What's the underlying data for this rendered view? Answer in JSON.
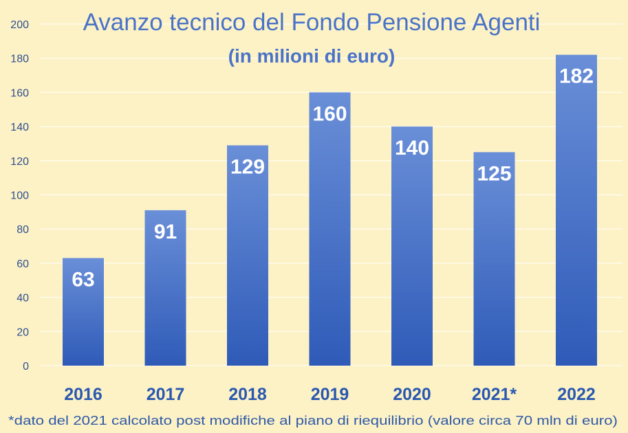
{
  "chart_data": {
    "type": "bar",
    "title": "Avanzo tecnico del Fondo Pensione Agenti",
    "subtitle": "(in milioni di euro)",
    "categories": [
      "2016",
      "2017",
      "2018",
      "2019",
      "2020",
      "2021*",
      "2022"
    ],
    "values": [
      63,
      91,
      129,
      160,
      140,
      125,
      182
    ],
    "value_labels": [
      "63",
      "91",
      "129",
      "160",
      "140",
      "125",
      "182"
    ],
    "ylim": [
      0,
      200
    ],
    "yticks": [
      0,
      20,
      40,
      60,
      80,
      100,
      120,
      140,
      160,
      180,
      200
    ],
    "ytick_labels": [
      "0",
      "20",
      "40",
      "60",
      "80",
      "100",
      "120",
      "140",
      "160",
      "180",
      "200"
    ],
    "grid": true,
    "legend": "none",
    "footnote": "*dato del 2021 calcolato post modifiche al piano di riequilibrio (valore circa 70 mln di euro)",
    "colors": {
      "background": "#fdf2c6",
      "bar_top": "#6a8fd8",
      "bar_bottom": "#2f5bb8",
      "title": "#4a73c7",
      "category_label": "#2a58b0"
    }
  }
}
